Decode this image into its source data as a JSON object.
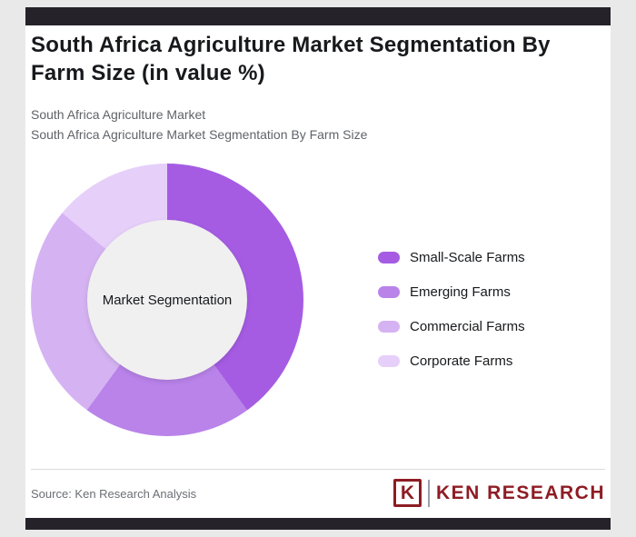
{
  "header": {
    "title": "South Africa Agriculture Market Segmentation By Farm Size (in value %)",
    "subtitle_line1": "South Africa Agriculture Market",
    "subtitle_line2": "South Africa Agriculture Market Segmentation By Farm Size"
  },
  "chart_data": {
    "type": "pie",
    "donut": true,
    "center_label": "Market Segmentation",
    "legend_position": "right",
    "unit": "%",
    "categories": [
      "Small-Scale Farms",
      "Emerging Farms",
      "Commercial Farms",
      "Corporate Farms"
    ],
    "values": [
      40,
      20,
      26,
      14
    ],
    "colors": [
      "#a55ce3",
      "#b983ea",
      "#d5b3f3",
      "#e6d0fa"
    ]
  },
  "footer": {
    "source": "Source: Ken Research Analysis",
    "logo": {
      "letter": "K",
      "text": "KEN RESEARCH",
      "color": "#8e1c24"
    }
  },
  "theme": {
    "bar_color": "#262229",
    "page_background": "#e9e9ea",
    "card_background": "#ffffff",
    "inner_circle_color": "#f0f0f0"
  }
}
